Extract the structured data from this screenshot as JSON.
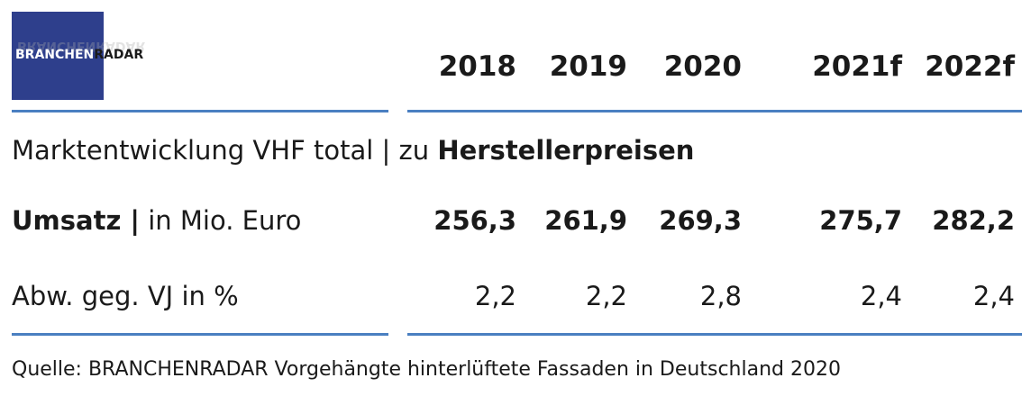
{
  "logo": {
    "text_part1": "BRANCHEN",
    "text_part2": "RADAR",
    "color": "#2e3f8c"
  },
  "table": {
    "years": [
      "2018",
      "2019",
      "2020",
      "2021f",
      "2022f"
    ],
    "heading_normal": "Marktentwicklung VHF total | zu ",
    "heading_bold": "Herstellerpreisen",
    "rows": [
      {
        "label_bold": "Umsatz |",
        "label_normal": " in Mio. Euro",
        "values": [
          "256,3",
          "261,9",
          "269,3",
          "275,7",
          "282,2"
        ]
      },
      {
        "label_bold": "",
        "label_normal": "Abw. geg. VJ in %",
        "values": [
          "2,2",
          "2,2",
          "2,8",
          "2,4",
          "2,4"
        ]
      }
    ],
    "rule_color": "#4a7fc1"
  },
  "source": "Quelle: BRANCHENRADAR Vorgehängte hinterlüftete Fassaden in Deutschland 2020"
}
